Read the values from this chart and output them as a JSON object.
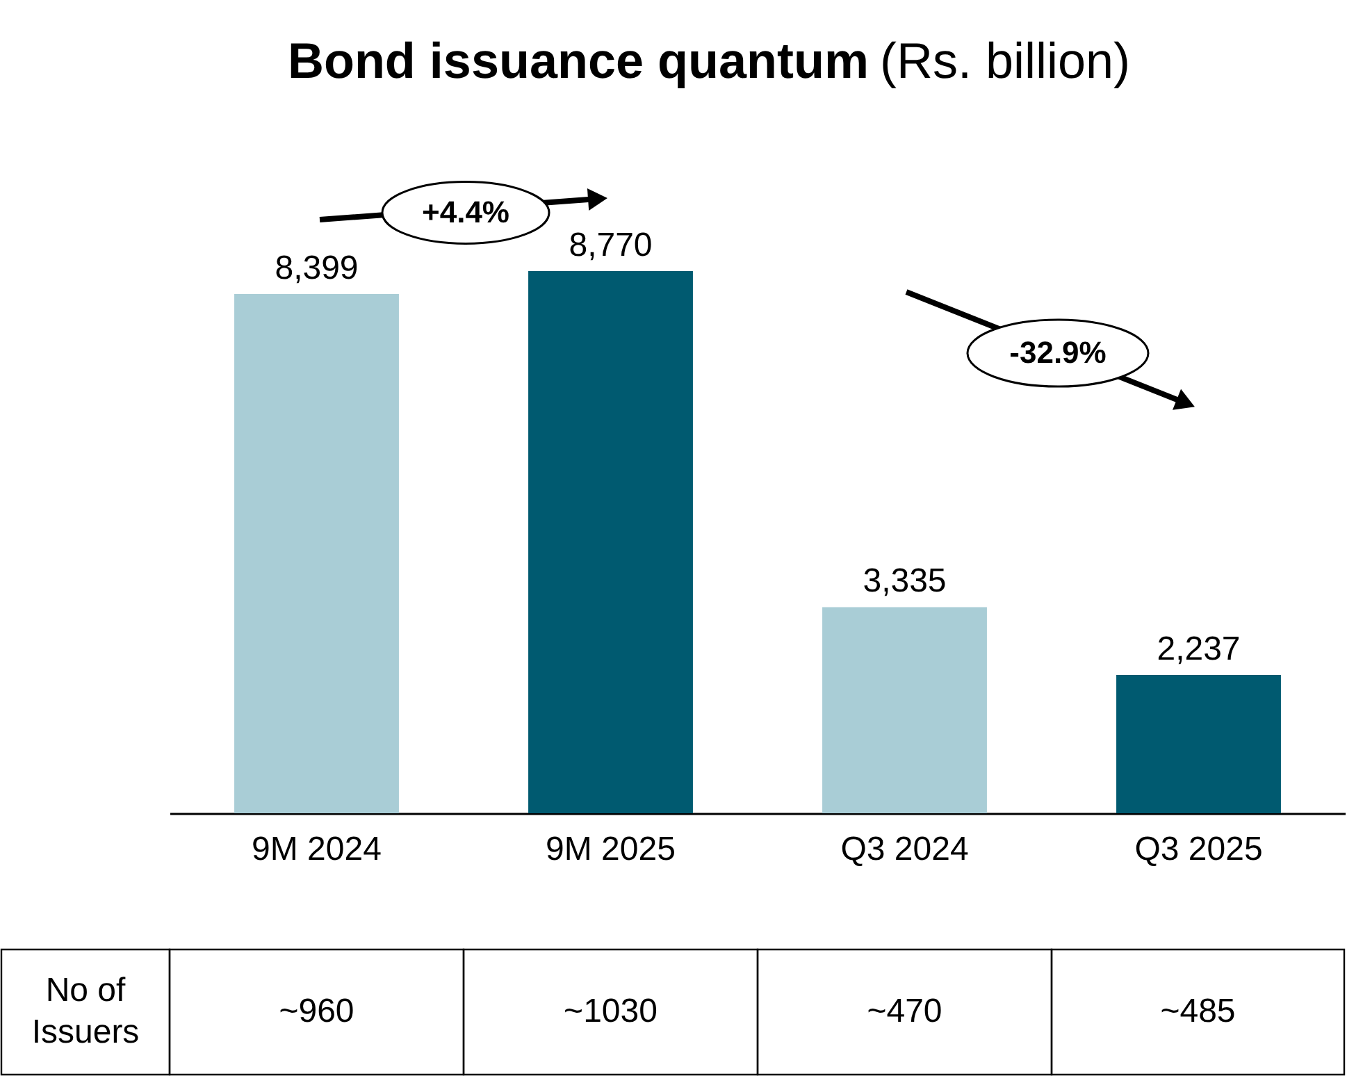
{
  "chart_data": {
    "type": "bar",
    "title": "Bond issuance quantum",
    "subtitle": "(Rs. billion)",
    "categories": [
      "9M 2024",
      "9M 2025",
      "Q3 2024",
      "Q3 2025"
    ],
    "values": [
      8399,
      8770,
      3335,
      2237
    ],
    "colors": [
      "#a9cdd6",
      "#005a70",
      "#a9cdd6",
      "#005a70"
    ],
    "value_labels": [
      "8,399",
      "8,770",
      "3,335",
      "2,237"
    ],
    "annotations": [
      "+4.4%",
      "-32.9%",
      "No of Issuers",
      "~960",
      "~1030",
      "~470",
      "~485"
    ],
    "grid": false
  }
}
